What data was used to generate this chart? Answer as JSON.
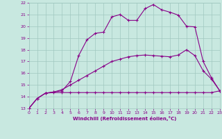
{
  "xlabel": "Windchill (Refroidissement éolien,°C)",
  "background_color": "#c8e8e0",
  "grid_color": "#a0c8c0",
  "line_color": "#880088",
  "xlim": [
    0,
    23
  ],
  "ylim": [
    13,
    22
  ],
  "xticks": [
    0,
    1,
    2,
    3,
    4,
    5,
    6,
    7,
    8,
    9,
    10,
    11,
    12,
    13,
    14,
    15,
    16,
    17,
    18,
    19,
    20,
    21,
    22,
    23
  ],
  "yticks": [
    13,
    14,
    15,
    16,
    17,
    18,
    19,
    20,
    21,
    22
  ],
  "line1_x": [
    0,
    1,
    2,
    3,
    4,
    5,
    6,
    7,
    8,
    9,
    10,
    11,
    12,
    13,
    14,
    15,
    16,
    17,
    18,
    19,
    20,
    21,
    22,
    23
  ],
  "line1_y": [
    13.0,
    13.85,
    14.3,
    14.35,
    14.35,
    14.35,
    14.35,
    14.35,
    14.35,
    14.35,
    14.35,
    14.35,
    14.35,
    14.35,
    14.35,
    14.35,
    14.35,
    14.35,
    14.35,
    14.35,
    14.35,
    14.35,
    14.35,
    14.5
  ],
  "line2_x": [
    0,
    1,
    2,
    3,
    4,
    5,
    6,
    7,
    8,
    9,
    10,
    11,
    12,
    13,
    14,
    15,
    16,
    17,
    18,
    19,
    20,
    21,
    22,
    23
  ],
  "line2_y": [
    13.0,
    13.85,
    14.3,
    14.4,
    14.6,
    15.0,
    15.4,
    15.8,
    16.2,
    16.6,
    17.0,
    17.2,
    17.4,
    17.5,
    17.55,
    17.5,
    17.45,
    17.4,
    17.55,
    18.0,
    17.5,
    16.2,
    15.5,
    14.5
  ],
  "line3_x": [
    0,
    1,
    2,
    3,
    4,
    5,
    6,
    7,
    8,
    9,
    10,
    11,
    12,
    13,
    14,
    15,
    16,
    17,
    18,
    19,
    20,
    21,
    22,
    23
  ],
  "line3_y": [
    13.0,
    13.85,
    14.3,
    14.4,
    14.5,
    15.3,
    17.5,
    18.85,
    19.4,
    19.5,
    20.8,
    21.0,
    20.5,
    20.5,
    21.5,
    21.85,
    21.4,
    21.2,
    20.95,
    20.0,
    19.95,
    17.0,
    15.6,
    14.5
  ]
}
